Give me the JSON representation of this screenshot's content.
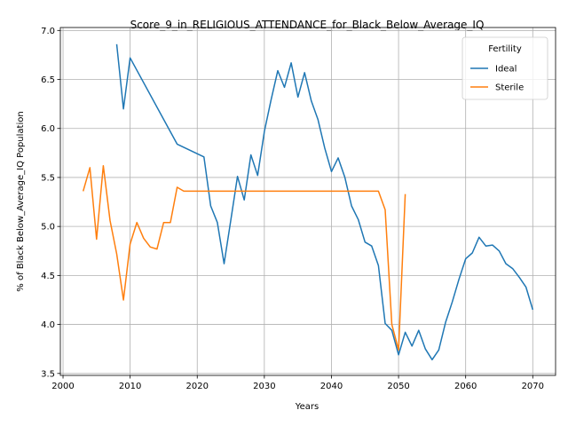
{
  "chart_data": {
    "type": "line",
    "title": "Score_9_in_RELIGIOUS_ATTENDANCE_for_Black_Below_Average_IQ",
    "xlabel": "Years",
    "ylabel": "% of Black Below_Average_IQ Population",
    "xlim": [
      1999.6,
      2073.4
    ],
    "ylim": [
      3.48,
      7.03
    ],
    "xticks": [
      2000,
      2010,
      2020,
      2030,
      2040,
      2050,
      2060,
      2070
    ],
    "yticks": [
      3.5,
      4.0,
      4.5,
      5.0,
      5.5,
      6.0,
      6.5,
      7.0
    ],
    "grid": true,
    "legend": {
      "title": "Fertility",
      "placement": "top-right"
    },
    "series": [
      {
        "name": "Ideal",
        "color": "#1f77b4",
        "x": [
          2008,
          2009,
          2010,
          2017,
          2021,
          2022,
          2023,
          2024,
          2025,
          2026,
          2027,
          2028,
          2029,
          2030,
          2031,
          2032,
          2033,
          2034,
          2035,
          2036,
          2037,
          2038,
          2039,
          2040,
          2041,
          2042,
          2043,
          2044,
          2045,
          2046,
          2047,
          2048,
          2049,
          2050,
          2051,
          2052,
          2053,
          2054,
          2055,
          2056,
          2057,
          2058,
          2059,
          2060,
          2061,
          2062,
          2063,
          2064,
          2065,
          2066,
          2067,
          2068,
          2069,
          2070
        ],
        "values": [
          6.86,
          6.2,
          6.72,
          5.84,
          5.71,
          5.21,
          5.04,
          4.62,
          5.06,
          5.51,
          5.27,
          5.73,
          5.52,
          5.97,
          6.29,
          6.59,
          6.42,
          6.67,
          6.32,
          6.57,
          6.28,
          6.09,
          5.8,
          5.56,
          5.7,
          5.5,
          5.21,
          5.07,
          4.84,
          4.8,
          4.6,
          4.01,
          3.94,
          3.69,
          3.92,
          3.78,
          3.94,
          3.75,
          3.64,
          3.74,
          4.02,
          4.23,
          4.46,
          4.67,
          4.73,
          4.89,
          4.8,
          4.81,
          4.75,
          4.62,
          4.57,
          4.48,
          4.38,
          4.15
        ]
      },
      {
        "name": "Sterile",
        "color": "#ff7f0e",
        "x": [
          2003,
          2004,
          2005,
          2006,
          2007,
          2008,
          2009,
          2010,
          2011,
          2012,
          2013,
          2014,
          2015,
          2016,
          2017,
          2018,
          2020,
          2030,
          2040,
          2047,
          2048,
          2049,
          2050,
          2051
        ],
        "values": [
          5.36,
          5.6,
          4.87,
          5.62,
          5.06,
          4.72,
          4.25,
          4.82,
          5.04,
          4.88,
          4.79,
          4.77,
          5.04,
          5.04,
          5.4,
          5.36,
          5.36,
          5.36,
          5.36,
          5.36,
          5.17,
          4.0,
          3.74,
          5.33
        ]
      }
    ]
  }
}
